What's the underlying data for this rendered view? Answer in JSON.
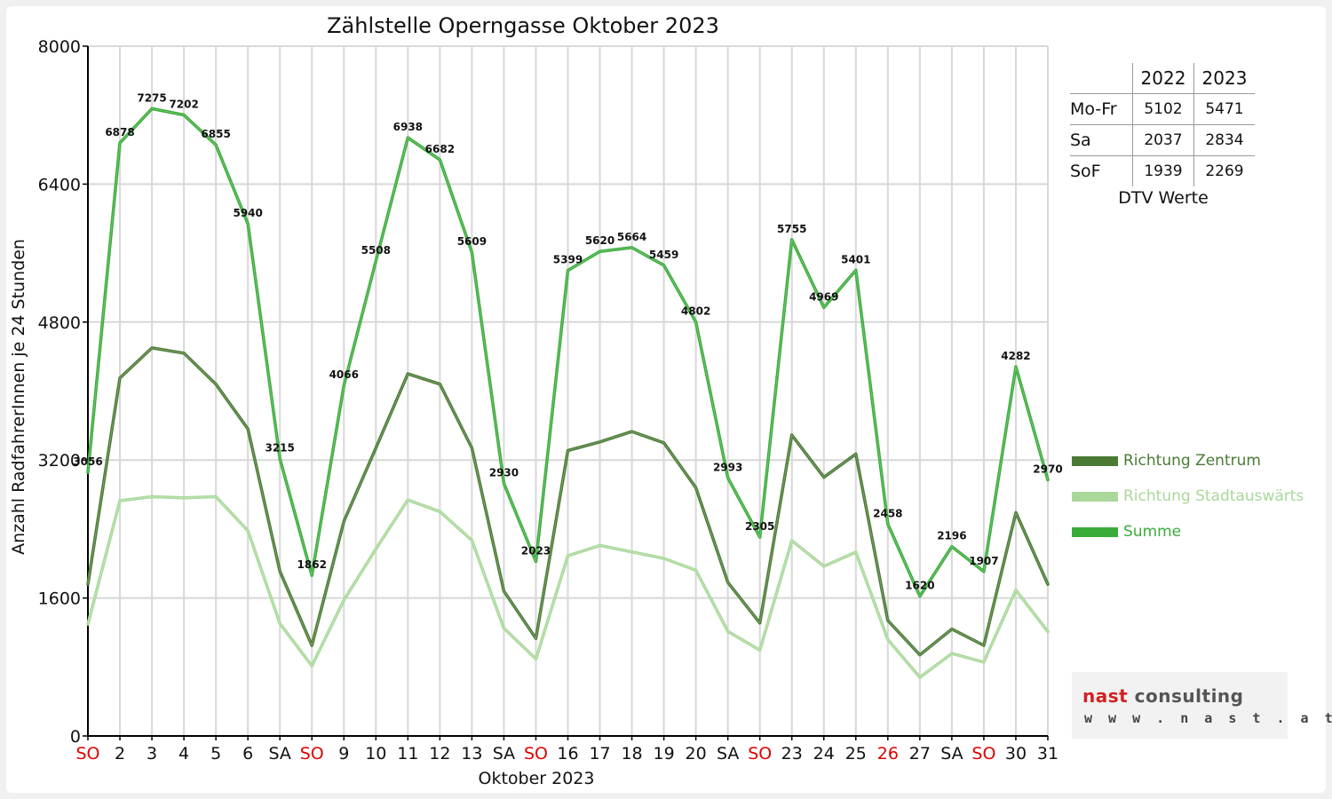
{
  "chart_data": {
    "type": "line",
    "title": "Zählstelle Operngasse Oktober 2023",
    "xlabel": "Oktober 2023",
    "ylabel": "Anzahl RadfahrerInnen je 24 Stunden",
    "ylim": [
      0,
      8000
    ],
    "yticks": [
      0,
      1600,
      3200,
      4800,
      6400,
      8000
    ],
    "grid": true,
    "legend_position": "right",
    "categories": [
      "SO",
      "2",
      "3",
      "4",
      "5",
      "6",
      "SA",
      "SO",
      "9",
      "10",
      "11",
      "12",
      "13",
      "SA",
      "SO",
      "16",
      "17",
      "18",
      "19",
      "20",
      "SA",
      "SO",
      "23",
      "24",
      "25",
      "26",
      "27",
      "SA",
      "SO",
      "30",
      "31"
    ],
    "highlight_categories": [
      0,
      7,
      14,
      21,
      25,
      28
    ],
    "series": [
      {
        "name": "Richtung Zentrum",
        "color": "#4a7a34",
        "values": [
          1760,
          4150,
          4500,
          4440,
          4080,
          3560,
          1910,
          1050,
          2490,
          3340,
          4200,
          4080,
          3340,
          1680,
          1130,
          3310,
          3410,
          3530,
          3400,
          2880,
          1780,
          1310,
          3490,
          3000,
          3270,
          1340,
          940,
          1240,
          1050,
          2590,
          1760
        ]
      },
      {
        "name": "Richtung Stadtauswärts",
        "color": "#a9d89a",
        "values": [
          1296,
          2728,
          2775,
          2762,
          2775,
          2380,
          1305,
          812,
          1576,
          2168,
          2738,
          2602,
          2269,
          1250,
          893,
          2089,
          2210,
          2134,
          2059,
          1922,
          1213,
          995,
          2265,
          1969,
          2131,
          1118,
          680,
          956,
          857,
          1692,
          1210
        ]
      },
      {
        "name": "Summe",
        "color": "#3aac3a",
        "values": [
          3056,
          6878,
          7275,
          7202,
          6855,
          5940,
          3215,
          1862,
          4066,
          5508,
          6938,
          6682,
          5609,
          2930,
          2023,
          5399,
          5620,
          5664,
          5459,
          4802,
          2993,
          2305,
          5755,
          4969,
          5401,
          2458,
          1620,
          2196,
          1907,
          4282,
          2970
        ],
        "labels": [
          "3056",
          "6878",
          "7275",
          "7202",
          "6855",
          "5940",
          "3215",
          "1862",
          "4066",
          "5508",
          "6938",
          "6682",
          "5609",
          "2930",
          "2023",
          "5399",
          "5620",
          "5664",
          "5459",
          "4802",
          "2993",
          "2305",
          "5755",
          "4969",
          "5401",
          "2458",
          "1620",
          "2196",
          "1907",
          "4282",
          "2970"
        ]
      }
    ]
  },
  "dtv_table": {
    "caption": "DTV Werte",
    "years": [
      "2022",
      "2023"
    ],
    "rows": [
      {
        "label": "Mo-Fr",
        "v2022": "5102",
        "v2023": "5471"
      },
      {
        "label": "Sa",
        "v2022": "2037",
        "v2023": "2834"
      },
      {
        "label": "SoF",
        "v2022": "1939",
        "v2023": "2269"
      }
    ]
  },
  "logo": {
    "word1": "nast",
    "word2": "consulting",
    "url": "w w w . n a s t . a t",
    "color1": "#d42020",
    "color2": "#555555"
  }
}
